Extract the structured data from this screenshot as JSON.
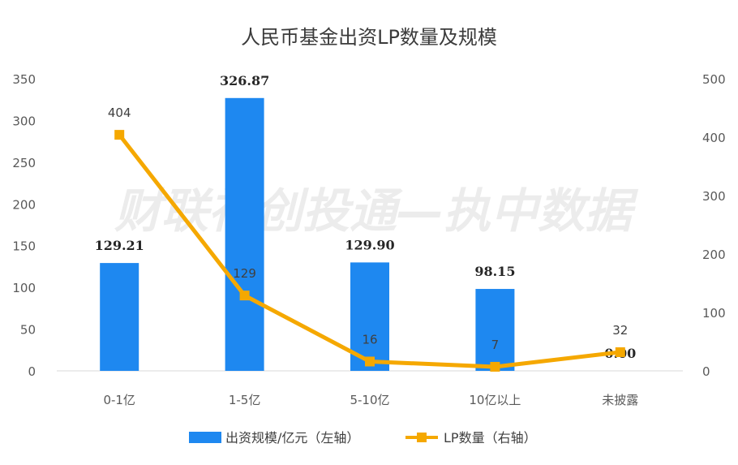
{
  "chart_data": {
    "type": "bar+line",
    "title": "人民币基金出资LP数量及规模",
    "categories": [
      "0-1亿",
      "1-5亿",
      "5-10亿",
      "10亿以上",
      "未披露"
    ],
    "series": [
      {
        "name": "出资规模/亿元（左轴）",
        "type": "bar",
        "axis": "left",
        "values": [
          129.21,
          326.87,
          129.9,
          98.15,
          0.0
        ],
        "labels": [
          "129.21",
          "326.87",
          "129.90",
          "98.15",
          "0.00"
        ],
        "color": "#1e88f0"
      },
      {
        "name": "LP数量（右轴）",
        "type": "line",
        "axis": "right",
        "values": [
          404,
          129,
          16,
          7,
          32
        ],
        "labels": [
          "404",
          "129",
          "16",
          "7",
          "32"
        ],
        "color": "#f5a800"
      }
    ],
    "left_axis": {
      "ylim": [
        0,
        350
      ],
      "ticks": [
        "0",
        "50",
        "100",
        "150",
        "200",
        "250",
        "300",
        "350"
      ]
    },
    "right_axis": {
      "ylim": [
        0,
        500
      ],
      "ticks": [
        "0",
        "100",
        "200",
        "300",
        "400",
        "500"
      ]
    },
    "grid": false,
    "legend": "bottom"
  },
  "watermark": "财联社创投通—执中数据"
}
